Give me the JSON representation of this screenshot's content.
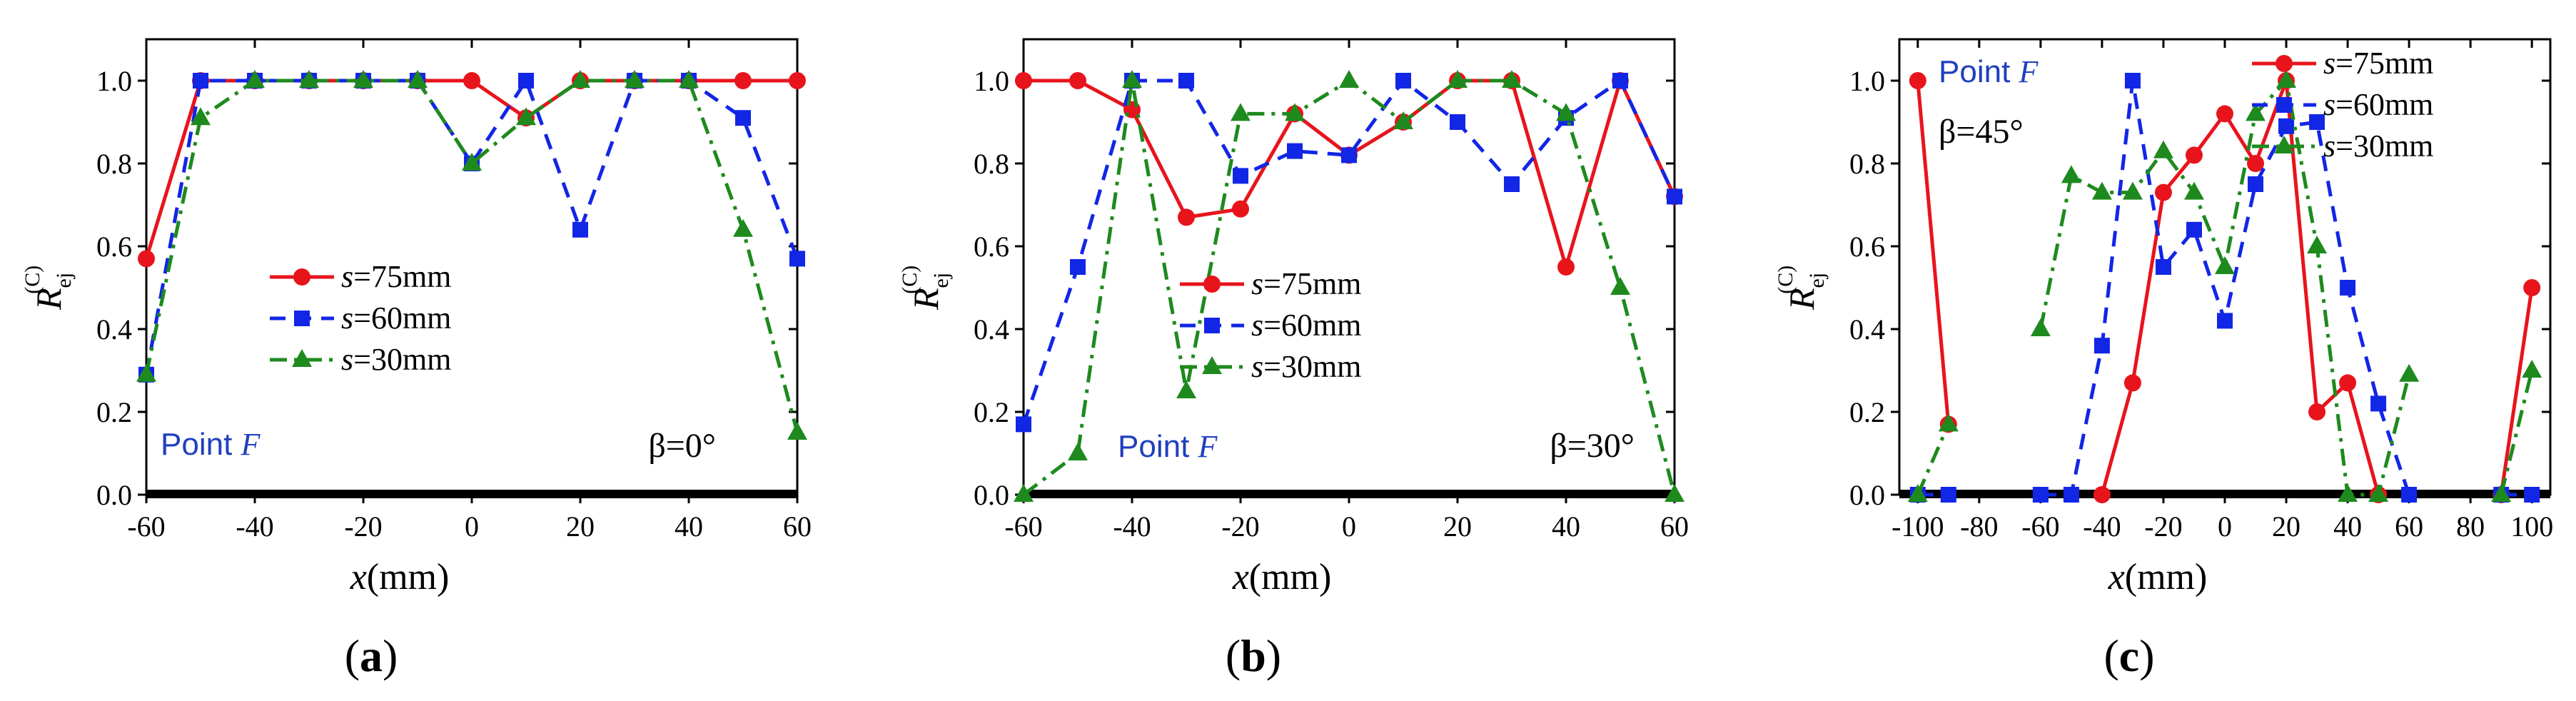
{
  "chart_data": [
    {
      "type": "line",
      "panel_label": "a",
      "caption_open": "(",
      "caption_close": ")",
      "xlabel_var": "x",
      "xlabel_unit": "(mm)",
      "ylabel_main": "R",
      "ylabel_sub": "ej",
      "ylabel_sup": "(C)",
      "xlim": [
        -60,
        60
      ],
      "ylim": [
        0,
        1.1
      ],
      "xticks": [
        -60,
        -40,
        -20,
        0,
        20,
        40,
        60
      ],
      "xtick_labels": [
        "-60",
        "-40",
        "-20",
        "0",
        "20",
        "40",
        "60"
      ],
      "yticks": [
        0.0,
        0.2,
        0.4,
        0.6,
        0.8,
        1.0
      ],
      "ytick_labels": [
        "0.0",
        "0.2",
        "0.4",
        "0.6",
        "0.8",
        "1.0"
      ],
      "point_label": "Point ",
      "point_var": "F",
      "beta_label": "β=0°",
      "legend_loc": "center",
      "series": [
        {
          "name_var": "s",
          "name_rest": "=75mm",
          "color": "#e8141c",
          "marker": "circle",
          "dash": "solid",
          "x": [
            -60,
            -50,
            -40,
            -30,
            -20,
            -10,
            0,
            10,
            20,
            30,
            40,
            50,
            60
          ],
          "y": [
            0.57,
            1.0,
            1.0,
            1.0,
            1.0,
            1.0,
            1.0,
            0.91,
            1.0,
            1.0,
            1.0,
            1.0,
            1.0
          ]
        },
        {
          "name_var": "s",
          "name_rest": "=60mm",
          "color": "#1226e6",
          "marker": "square",
          "dash": "dash",
          "x": [
            -60,
            -50,
            -40,
            -30,
            -20,
            -10,
            0,
            10,
            20,
            30,
            40,
            50,
            60
          ],
          "y": [
            0.29,
            1.0,
            1.0,
            1.0,
            1.0,
            1.0,
            0.8,
            1.0,
            0.64,
            1.0,
            1.0,
            0.91,
            0.57
          ]
        },
        {
          "name_var": "s",
          "name_rest": "=30mm",
          "color": "#1e8a1e",
          "marker": "triangle",
          "dash": "dashdot",
          "x": [
            -60,
            -50,
            -40,
            -30,
            -20,
            -10,
            0,
            10,
            20,
            30,
            40,
            50,
            60
          ],
          "y": [
            0.29,
            0.91,
            1.0,
            1.0,
            1.0,
            1.0,
            0.8,
            0.91,
            1.0,
            1.0,
            1.0,
            0.64,
            0.15
          ]
        }
      ]
    },
    {
      "type": "line",
      "panel_label": "b",
      "caption_open": "(",
      "caption_close": ")",
      "xlabel_var": "x",
      "xlabel_unit": "(mm)",
      "ylabel_main": "R",
      "ylabel_sub": "ej",
      "ylabel_sup": "(C)",
      "xlim": [
        -60,
        60
      ],
      "ylim": [
        0,
        1.1
      ],
      "xticks": [
        -60,
        -40,
        -20,
        0,
        20,
        40,
        60
      ],
      "xtick_labels": [
        "-60",
        "-40",
        "-20",
        "0",
        "20",
        "40",
        "60"
      ],
      "yticks": [
        0.0,
        0.2,
        0.4,
        0.6,
        0.8,
        1.0
      ],
      "ytick_labels": [
        "0.0",
        "0.2",
        "0.4",
        "0.6",
        "0.8",
        "1.0"
      ],
      "point_label": "Point ",
      "point_var": "F",
      "beta_label": "β=30°",
      "legend_loc": "center-right",
      "series": [
        {
          "name_var": "s",
          "name_rest": "=75mm",
          "color": "#e8141c",
          "marker": "circle",
          "dash": "solid",
          "x": [
            -60,
            -50,
            -40,
            -30,
            -20,
            -10,
            0,
            10,
            20,
            30,
            40,
            50,
            60
          ],
          "y": [
            1.0,
            1.0,
            0.93,
            0.67,
            0.69,
            0.92,
            0.82,
            0.9,
            1.0,
            1.0,
            0.55,
            1.0,
            0.72
          ]
        },
        {
          "name_var": "s",
          "name_rest": "=60mm",
          "color": "#1226e6",
          "marker": "square",
          "dash": "dash",
          "x": [
            -60,
            -50,
            -40,
            -30,
            -20,
            -10,
            0,
            10,
            20,
            30,
            40,
            50,
            60
          ],
          "y": [
            0.17,
            0.55,
            1.0,
            1.0,
            0.77,
            0.83,
            0.82,
            1.0,
            0.9,
            0.75,
            0.91,
            1.0,
            0.72
          ]
        },
        {
          "name_var": "s",
          "name_rest": "=30mm",
          "color": "#1e8a1e",
          "marker": "triangle",
          "dash": "dashdot",
          "x": [
            -60,
            -50,
            -40,
            -30,
            -20,
            -10,
            0,
            10,
            20,
            30,
            40,
            50,
            60
          ],
          "y": [
            0.0,
            0.1,
            1.0,
            0.25,
            0.92,
            0.92,
            1.0,
            0.9,
            1.0,
            1.0,
            0.92,
            0.5,
            0.0
          ]
        }
      ]
    },
    {
      "type": "line",
      "panel_label": "c",
      "caption_open": "(",
      "caption_close": ")",
      "xlabel_var": "x",
      "xlabel_unit": "(mm)",
      "ylabel_main": "R",
      "ylabel_sub": "ej",
      "ylabel_sup": "(C)",
      "xlim": [
        -106,
        106
      ],
      "ylim": [
        0,
        1.1
      ],
      "xticks": [
        -100,
        -80,
        -60,
        -40,
        -20,
        0,
        20,
        40,
        60,
        80,
        100
      ],
      "xtick_labels": [
        "-100",
        "-80",
        "-60",
        "-40",
        "-20",
        "0",
        "20",
        "40",
        "60",
        "80",
        "100"
      ],
      "yticks": [
        0.0,
        0.2,
        0.4,
        0.6,
        0.8,
        1.0
      ],
      "ytick_labels": [
        "0.0",
        "0.2",
        "0.4",
        "0.6",
        "0.8",
        "1.0"
      ],
      "point_label": "Point ",
      "point_var": "F",
      "beta_label": "β=45°",
      "legend_loc": "top-right",
      "series": [
        {
          "name_var": "s",
          "name_rest": "=75mm",
          "color": "#e8141c",
          "marker": "circle",
          "dash": "solid",
          "segments": [
            {
              "x": [
                -100,
                -90
              ],
              "y": [
                1.0,
                0.17
              ]
            },
            {
              "x": [
                -40,
                -30,
                -20,
                -10,
                0,
                10,
                20,
                30,
                40,
                50
              ],
              "y": [
                0.0,
                0.27,
                0.73,
                0.82,
                0.92,
                0.8,
                1.0,
                0.2,
                0.27,
                0.0
              ]
            },
            {
              "x": [
                90,
                100
              ],
              "y": [
                0.0,
                0.5
              ]
            }
          ]
        },
        {
          "name_var": "s",
          "name_rest": "=60mm",
          "color": "#1226e6",
          "marker": "square",
          "dash": "dash",
          "segments": [
            {
              "x": [
                -100,
                -90
              ],
              "y": [
                0.0,
                0.0
              ]
            },
            {
              "x": [
                -60,
                -50,
                -40,
                -30,
                -20,
                -10,
                0,
                10,
                20,
                30,
                40,
                50,
                60
              ],
              "y": [
                0.0,
                0.0,
                0.36,
                1.0,
                0.55,
                0.64,
                0.42,
                0.75,
                0.89,
                0.9,
                0.5,
                0.22,
                0.0
              ]
            },
            {
              "x": [
                90,
                100
              ],
              "y": [
                0.0,
                0.0
              ]
            }
          ]
        },
        {
          "name_var": "s",
          "name_rest": "=30mm",
          "color": "#1e8a1e",
          "marker": "triangle",
          "dash": "dashdot",
          "segments": [
            {
              "x": [
                -100,
                -90
              ],
              "y": [
                0.0,
                0.17
              ]
            },
            {
              "x": [
                -60,
                -50,
                -40,
                -30,
                -20,
                -10,
                0,
                10,
                20,
                30,
                40,
                50,
                60
              ],
              "y": [
                0.4,
                0.77,
                0.73,
                0.73,
                0.83,
                0.73,
                0.55,
                0.92,
                1.0,
                0.6,
                0.0,
                0.0,
                0.29
              ]
            },
            {
              "x": [
                90,
                100
              ],
              "y": [
                0.0,
                0.3
              ]
            }
          ]
        }
      ]
    }
  ]
}
